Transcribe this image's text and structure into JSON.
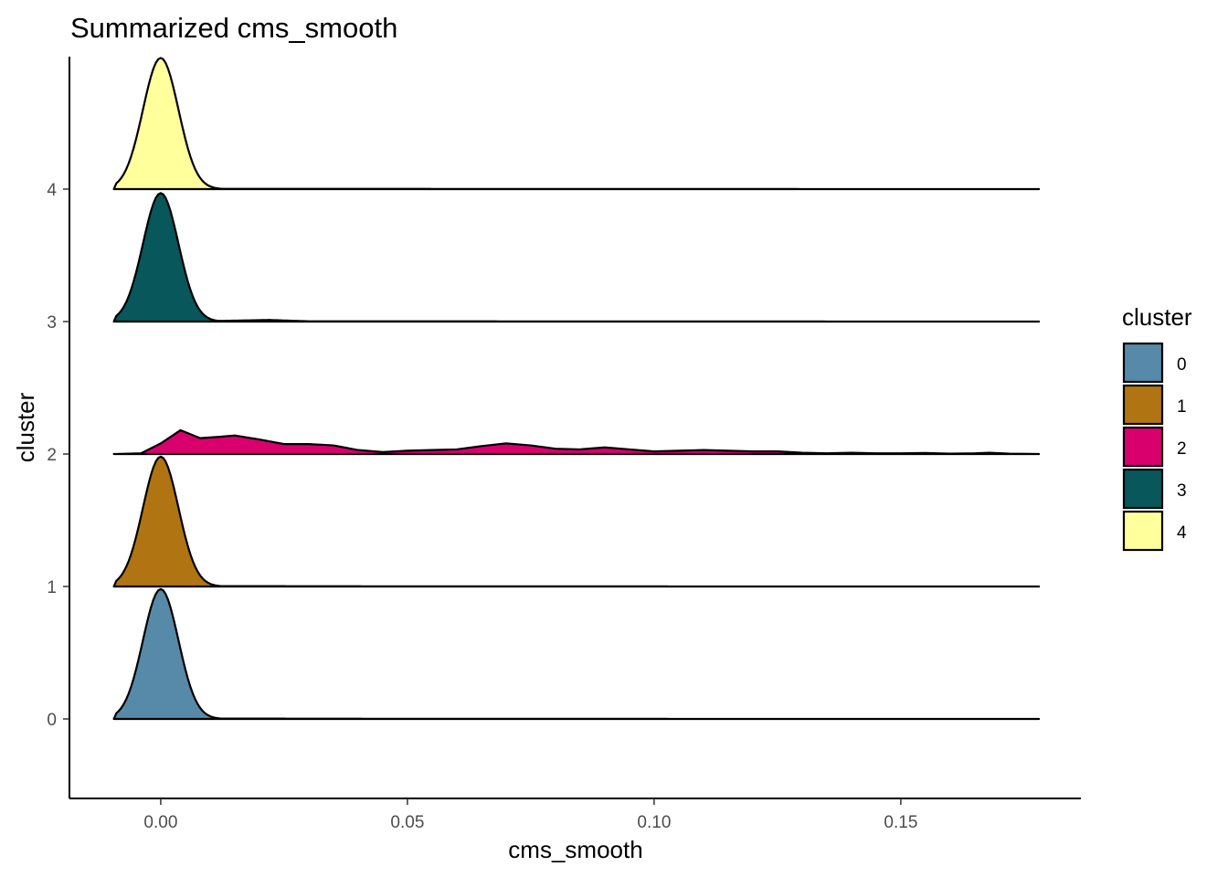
{
  "chart_data": {
    "type": "ridgeline",
    "title": "Summarized cms_smooth",
    "xlabel": "cms_smooth",
    "ylabel": "cluster",
    "xlim": [
      -0.0185,
      0.1865
    ],
    "ylim": [
      -0.6,
      5.0
    ],
    "x_ticks": [
      0.0,
      0.05,
      0.1,
      0.15
    ],
    "x_tick_labels": [
      "0.00",
      "0.05",
      "0.10",
      "0.15"
    ],
    "y_ticks": [
      0,
      1,
      2,
      3,
      4
    ],
    "y_tick_labels": [
      "0",
      "1",
      "2",
      "3",
      "4"
    ],
    "legend": {
      "title": "cluster",
      "position": "right",
      "items": [
        {
          "label": "0",
          "color": "#568aa8"
        },
        {
          "label": "1",
          "color": "#b07512"
        },
        {
          "label": "2",
          "color": "#d9006e"
        },
        {
          "label": "3",
          "color": "#08575a"
        },
        {
          "label": "4",
          "color": "#ffff9c"
        }
      ]
    },
    "x_range": [
      -0.0095,
      0.178
    ],
    "series": [
      {
        "name": "0",
        "color": "#568aa8",
        "baseline": 0,
        "peak_x": 0.0,
        "peak_height": 0.98,
        "tail": [
          [
            0.012,
            0.003
          ],
          [
            0.05,
            0.001
          ],
          [
            0.178,
            0.0
          ]
        ]
      },
      {
        "name": "1",
        "color": "#b07512",
        "baseline": 1,
        "peak_x": 0.0,
        "peak_height": 0.98,
        "tail": [
          [
            0.012,
            0.003
          ],
          [
            0.05,
            0.001
          ],
          [
            0.178,
            0.0
          ]
        ]
      },
      {
        "name": "2",
        "color": "#d9006e",
        "baseline": 2,
        "points": [
          [
            -0.0095,
            0.0
          ],
          [
            -0.004,
            0.005
          ],
          [
            0.0,
            0.08
          ],
          [
            0.004,
            0.18
          ],
          [
            0.008,
            0.12
          ],
          [
            0.012,
            0.13
          ],
          [
            0.015,
            0.14
          ],
          [
            0.02,
            0.11
          ],
          [
            0.025,
            0.075
          ],
          [
            0.03,
            0.075
          ],
          [
            0.035,
            0.065
          ],
          [
            0.04,
            0.03
          ],
          [
            0.045,
            0.015
          ],
          [
            0.05,
            0.025
          ],
          [
            0.055,
            0.03
          ],
          [
            0.06,
            0.035
          ],
          [
            0.065,
            0.06
          ],
          [
            0.07,
            0.08
          ],
          [
            0.075,
            0.065
          ],
          [
            0.08,
            0.04
          ],
          [
            0.085,
            0.035
          ],
          [
            0.09,
            0.05
          ],
          [
            0.095,
            0.035
          ],
          [
            0.1,
            0.02
          ],
          [
            0.105,
            0.025
          ],
          [
            0.11,
            0.03
          ],
          [
            0.115,
            0.025
          ],
          [
            0.12,
            0.02
          ],
          [
            0.125,
            0.02
          ],
          [
            0.13,
            0.01
          ],
          [
            0.135,
            0.005
          ],
          [
            0.14,
            0.01
          ],
          [
            0.145,
            0.005
          ],
          [
            0.15,
            0.005
          ],
          [
            0.155,
            0.008
          ],
          [
            0.16,
            0.003
          ],
          [
            0.165,
            0.005
          ],
          [
            0.168,
            0.01
          ],
          [
            0.172,
            0.003
          ],
          [
            0.178,
            0.0
          ]
        ]
      },
      {
        "name": "3",
        "color": "#08575a",
        "baseline": 3,
        "peak_x": 0.0,
        "peak_height": 0.97,
        "tail": [
          [
            0.012,
            0.005
          ],
          [
            0.022,
            0.012
          ],
          [
            0.03,
            0.002
          ],
          [
            0.178,
            0.0
          ]
        ]
      },
      {
        "name": "4",
        "color": "#ffff9c",
        "baseline": 4,
        "peak_x": 0.0,
        "peak_height": 0.99,
        "tail": [
          [
            0.012,
            0.002
          ],
          [
            0.178,
            0.0
          ]
        ]
      }
    ]
  }
}
